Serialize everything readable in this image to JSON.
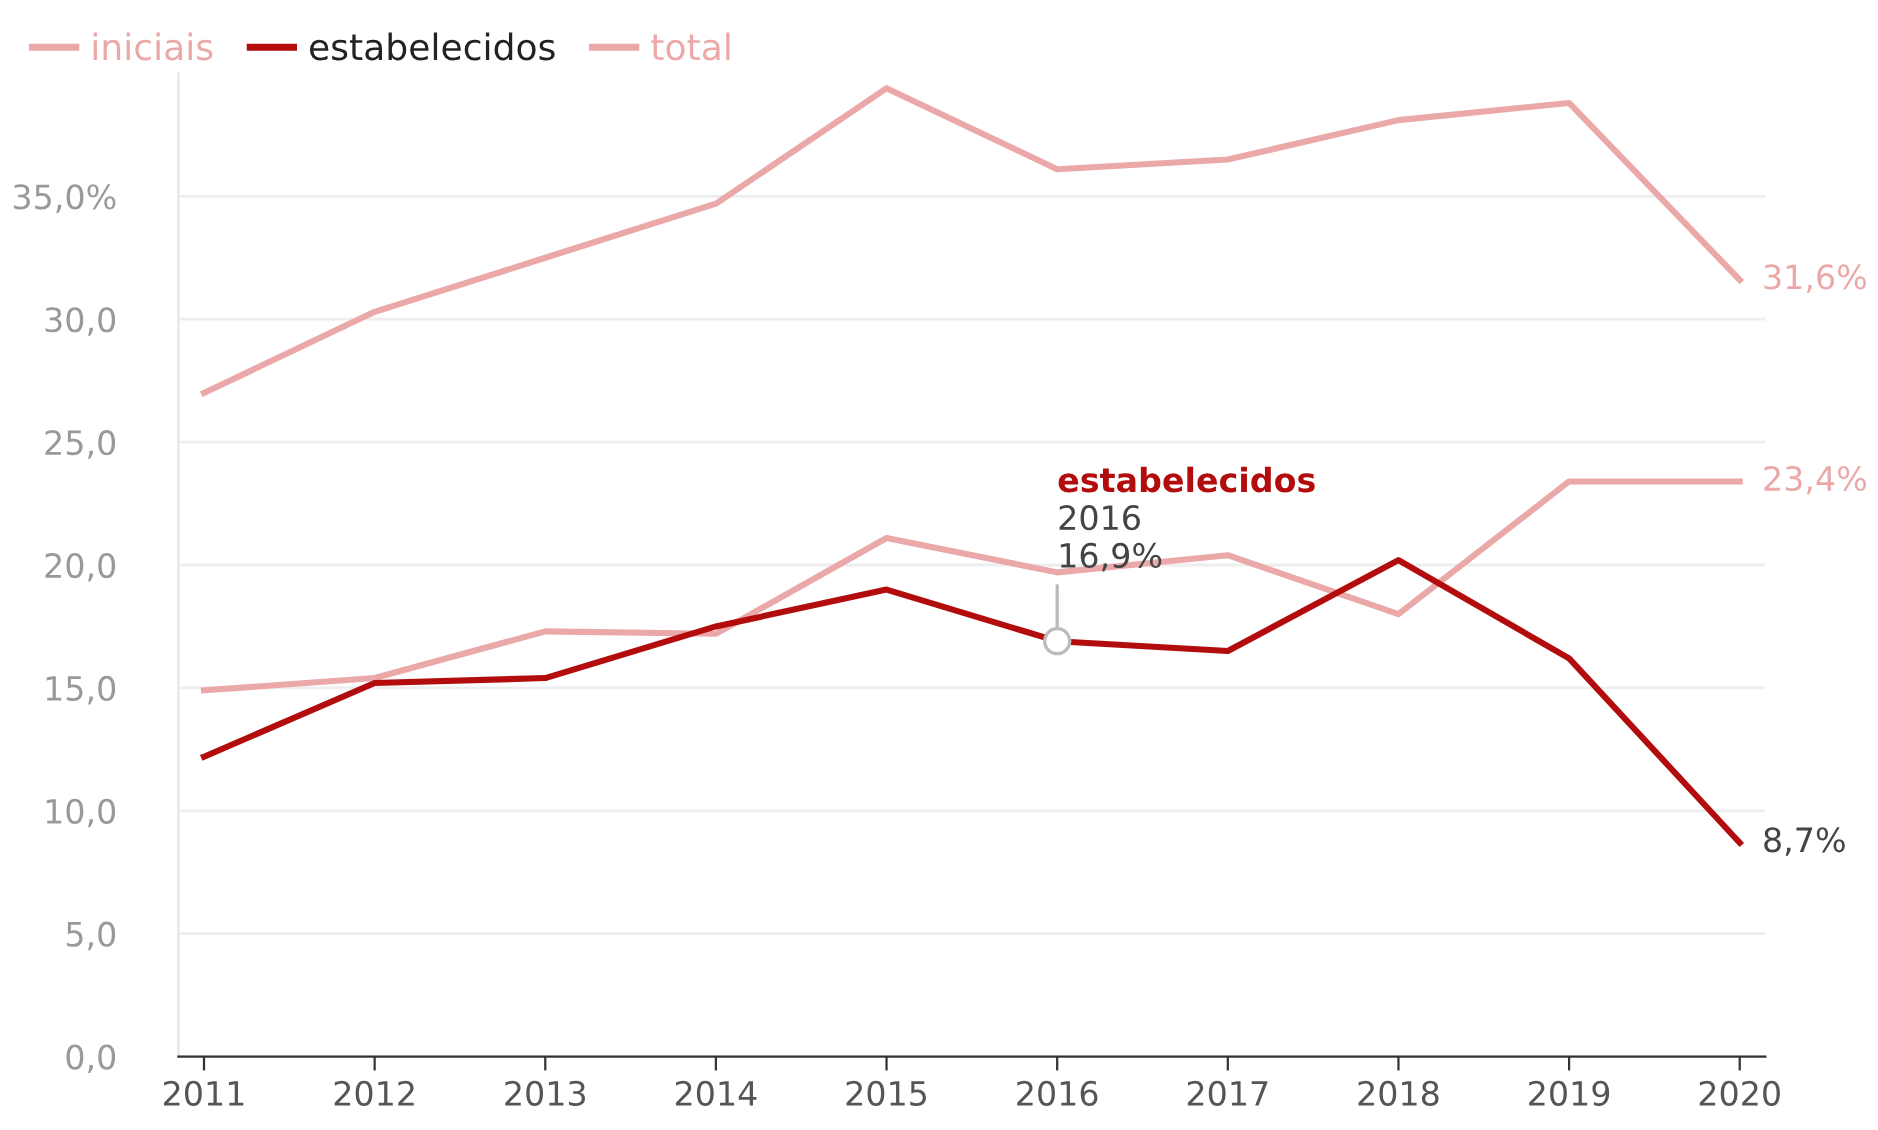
{
  "chart_data": {
    "type": "line",
    "x": [
      2011,
      2012,
      2013,
      2014,
      2015,
      2016,
      2017,
      2018,
      2019,
      2020
    ],
    "series": [
      {
        "name": "iniciais",
        "color": "#eba8a8",
        "values": [
          14.9,
          15.4,
          17.3,
          17.2,
          21.1,
          19.7,
          20.4,
          18.0,
          23.4,
          23.4
        ],
        "value_labels": [
          null,
          null,
          null,
          null,
          null,
          null,
          null,
          null,
          null,
          "23,4%"
        ]
      },
      {
        "name": "estabelecidos",
        "color": "#b20c0c",
        "values": [
          12.2,
          15.2,
          15.4,
          17.5,
          19.0,
          16.9,
          16.5,
          20.2,
          16.2,
          8.7
        ],
        "value_labels": [
          null,
          null,
          null,
          null,
          null,
          null,
          null,
          null,
          null,
          "8,7%"
        ]
      },
      {
        "name": "total",
        "color": "#eba8a8",
        "values": [
          27.0,
          30.3,
          32.5,
          34.7,
          39.4,
          36.1,
          36.5,
          38.1,
          38.8,
          31.6
        ],
        "value_labels": [
          null,
          null,
          null,
          null,
          null,
          null,
          null,
          null,
          null,
          "31,6%"
        ]
      }
    ],
    "xlim": [
      2010.85,
      2020.15
    ],
    "xticks": [
      2011,
      2012,
      2013,
      2014,
      2015,
      2016,
      2017,
      2018,
      2019,
      2020
    ],
    "ylim": [
      0,
      40
    ],
    "yticks": [
      {
        "value": 0,
        "label": "0,0"
      },
      {
        "value": 5,
        "label": "5,0"
      },
      {
        "value": 10,
        "label": "10,0"
      },
      {
        "value": 15,
        "label": "15,0"
      },
      {
        "value": 20,
        "label": "20,0"
      },
      {
        "value": 25,
        "label": "25,0"
      },
      {
        "value": 30,
        "label": "30,0"
      },
      {
        "value": 35,
        "label": "35,0%"
      }
    ],
    "annotations": [
      "estabelecidos",
      "2016",
      {
        "text": "16,9%",
        "x": 2016,
        "y": 16.9
      }
    ],
    "grid": "y",
    "legend": "top left",
    "marker": "none",
    "line_style": "solid"
  }
}
